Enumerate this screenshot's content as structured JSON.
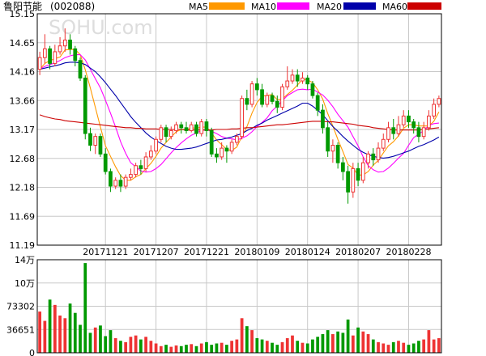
{
  "header": {
    "title": "鲁阳节能",
    "code": "(002088)",
    "watermark": "SOHU.com"
  },
  "legend": [
    {
      "label": "MA5",
      "color": "#FF9900"
    },
    {
      "label": "MA10",
      "color": "#FF00FF"
    },
    {
      "label": "MA20",
      "color": "#0000AA"
    },
    {
      "label": "MA60",
      "color": "#CC0000"
    }
  ],
  "colors": {
    "up": "#EE3333",
    "down": "#009900",
    "grid": "#C8C8C8",
    "border": "#000000"
  },
  "chart_data": [
    {
      "type": "candlestick",
      "title": "",
      "ylim": [
        11.19,
        15.15
      ],
      "yticks": [
        "15.15",
        "14.65",
        "14.16",
        "13.66",
        "13.17",
        "12.68",
        "12.18",
        "11.69",
        "11.19"
      ],
      "xticks": [
        {
          "index": 13,
          "label": "20171121"
        },
        {
          "index": 23,
          "label": "20171207"
        },
        {
          "index": 33,
          "label": "20171221"
        },
        {
          "index": 43,
          "label": "20180109"
        },
        {
          "index": 53,
          "label": "20180124"
        },
        {
          "index": 63,
          "label": "20180207"
        },
        {
          "index": 73,
          "label": "20180228"
        }
      ],
      "candles": [
        [
          14.2,
          14.4,
          14.5,
          14.1
        ],
        [
          14.4,
          14.55,
          14.8,
          14.3
        ],
        [
          14.55,
          14.3,
          14.6,
          14.2
        ],
        [
          14.3,
          14.5,
          14.62,
          14.25
        ],
        [
          14.5,
          14.6,
          14.75,
          14.45
        ],
        [
          14.6,
          14.7,
          14.9,
          14.5
        ],
        [
          14.7,
          14.55,
          14.8,
          14.45
        ],
        [
          14.55,
          14.35,
          14.6,
          14.25
        ],
        [
          14.35,
          14.05,
          14.4,
          14.0
        ],
        [
          14.05,
          13.1,
          14.1,
          13.0
        ],
        [
          13.1,
          12.9,
          13.2,
          12.8
        ],
        [
          12.9,
          13.05,
          13.1,
          12.75
        ],
        [
          13.05,
          12.75,
          13.1,
          12.7
        ],
        [
          12.75,
          12.45,
          12.85,
          12.4
        ],
        [
          12.45,
          12.2,
          12.5,
          12.1
        ],
        [
          12.2,
          12.3,
          12.35,
          12.15
        ],
        [
          12.3,
          12.2,
          12.4,
          12.1
        ],
        [
          12.2,
          12.35,
          12.4,
          12.15
        ],
        [
          12.35,
          12.4,
          12.5,
          12.3
        ],
        [
          12.4,
          12.55,
          12.6,
          12.35
        ],
        [
          12.55,
          12.5,
          12.65,
          12.4
        ],
        [
          12.5,
          12.7,
          12.78,
          12.45
        ],
        [
          12.7,
          12.8,
          12.9,
          12.65
        ],
        [
          12.8,
          13.0,
          13.05,
          12.75
        ],
        [
          13.0,
          13.2,
          13.25,
          12.95
        ],
        [
          13.2,
          13.05,
          13.25,
          12.95
        ],
        [
          13.05,
          13.15,
          13.22,
          13.0
        ],
        [
          13.15,
          13.25,
          13.3,
          13.1
        ],
        [
          13.25,
          13.2,
          13.3,
          13.1
        ],
        [
          13.2,
          13.15,
          13.3,
          13.1
        ],
        [
          13.15,
          13.25,
          13.3,
          13.12
        ],
        [
          13.25,
          13.1,
          13.3,
          13.05
        ],
        [
          13.1,
          13.3,
          13.35,
          13.05
        ],
        [
          13.3,
          13.15,
          13.35,
          13.05
        ],
        [
          13.15,
          12.75,
          13.2,
          12.7
        ],
        [
          12.75,
          12.7,
          12.85,
          12.6
        ],
        [
          12.7,
          12.85,
          12.95,
          12.65
        ],
        [
          12.85,
          12.8,
          12.9,
          12.6
        ],
        [
          12.8,
          12.95,
          13.0,
          12.75
        ],
        [
          12.95,
          13.05,
          13.1,
          12.9
        ],
        [
          13.05,
          13.7,
          13.75,
          13.0
        ],
        [
          13.7,
          13.6,
          13.85,
          13.5
        ],
        [
          13.6,
          13.95,
          14.0,
          13.55
        ],
        [
          13.95,
          13.85,
          14.05,
          13.75
        ],
        [
          13.85,
          13.6,
          13.95,
          13.55
        ],
        [
          13.6,
          13.75,
          13.8,
          13.55
        ],
        [
          13.75,
          13.65,
          13.8,
          13.6
        ],
        [
          13.65,
          13.55,
          13.75,
          13.45
        ],
        [
          13.55,
          13.9,
          13.95,
          13.5
        ],
        [
          13.9,
          14.0,
          14.25,
          13.85
        ],
        [
          14.0,
          14.1,
          14.2,
          13.95
        ],
        [
          14.1,
          14.0,
          14.2,
          13.9
        ],
        [
          14.0,
          14.05,
          14.15,
          13.95
        ],
        [
          14.05,
          13.95,
          14.1,
          13.85
        ],
        [
          13.95,
          13.75,
          14.0,
          13.7
        ],
        [
          13.75,
          13.5,
          13.8,
          13.4
        ],
        [
          13.5,
          13.2,
          13.6,
          13.1
        ],
        [
          13.2,
          12.8,
          13.3,
          12.7
        ],
        [
          12.8,
          12.9,
          13.0,
          12.6
        ],
        [
          12.9,
          12.6,
          12.95,
          12.5
        ],
        [
          12.6,
          12.45,
          12.7,
          12.3
        ],
        [
          12.45,
          12.1,
          12.55,
          11.9
        ],
        [
          12.1,
          12.5,
          12.6,
          12.0
        ],
        [
          12.5,
          12.3,
          12.6,
          12.2
        ],
        [
          12.3,
          12.6,
          12.7,
          12.25
        ],
        [
          12.6,
          12.75,
          12.8,
          12.5
        ],
        [
          12.75,
          12.65,
          12.85,
          12.55
        ],
        [
          12.65,
          12.85,
          12.95,
          12.6
        ],
        [
          12.85,
          13.0,
          13.1,
          12.8
        ],
        [
          13.0,
          13.2,
          13.3,
          12.95
        ],
        [
          13.2,
          13.1,
          13.35,
          13.0
        ],
        [
          13.1,
          13.25,
          13.4,
          13.05
        ],
        [
          13.25,
          13.4,
          13.5,
          13.2
        ],
        [
          13.4,
          13.3,
          13.5,
          13.2
        ],
        [
          13.3,
          13.2,
          13.35,
          13.1
        ],
        [
          13.2,
          13.05,
          13.3,
          12.95
        ],
        [
          13.05,
          13.2,
          13.3,
          13.0
        ],
        [
          13.2,
          13.4,
          13.5,
          13.15
        ],
        [
          13.4,
          13.6,
          13.7,
          13.35
        ],
        [
          13.6,
          13.7,
          13.75,
          13.55
        ]
      ],
      "series": [
        {
          "name": "MA5",
          "values": [
            14.2,
            14.3,
            14.35,
            14.38,
            14.41,
            14.53,
            14.54,
            14.54,
            14.45,
            14.19,
            13.88,
            13.55,
            13.21,
            12.89,
            12.71,
            12.53,
            12.38,
            12.3,
            12.3,
            12.36,
            12.4,
            12.5,
            12.59,
            12.71,
            12.85,
            12.95,
            13.04,
            13.13,
            13.17,
            13.16,
            13.2,
            13.19,
            13.21,
            13.21,
            13.11,
            12.99,
            12.91,
            12.83,
            12.81,
            12.87,
            13.05,
            13.22,
            13.45,
            13.63,
            13.74,
            13.75,
            13.77,
            13.68,
            13.69,
            13.77,
            13.84,
            13.93,
            14.03,
            14.02,
            13.97,
            13.85,
            13.69,
            13.44,
            13.23,
            13.0,
            12.79,
            12.57,
            12.51,
            12.39,
            12.39,
            12.45,
            12.56,
            12.64,
            12.77,
            12.89,
            12.96,
            13.06,
            13.19,
            13.25,
            13.25,
            13.23,
            13.23,
            13.23,
            13.31,
            13.47
          ]
        },
        {
          "name": "MA10",
          "values": [
            14.2,
            14.25,
            14.28,
            14.31,
            14.35,
            14.4,
            14.43,
            14.45,
            14.45,
            14.36,
            14.2,
            14.04,
            13.88,
            13.67,
            13.45,
            13.21,
            12.96,
            12.76,
            12.6,
            12.53,
            12.46,
            12.44,
            12.45,
            12.5,
            12.57,
            12.67,
            12.77,
            12.86,
            12.94,
            13.01,
            13.07,
            13.11,
            13.15,
            13.17,
            13.14,
            13.1,
            13.05,
            13.02,
            13.01,
            12.99,
            13.02,
            13.06,
            13.13,
            13.22,
            13.29,
            13.37,
            13.49,
            13.57,
            13.66,
            13.75,
            13.8,
            13.85,
            13.86,
            13.85,
            13.86,
            13.81,
            13.76,
            13.67,
            13.56,
            13.43,
            13.32,
            13.21,
            13.05,
            12.89,
            12.7,
            12.55,
            12.48,
            12.44,
            12.45,
            12.51,
            12.59,
            12.68,
            12.76,
            12.9,
            13.03,
            13.09,
            13.15,
            13.24,
            13.27,
            13.28
          ]
        },
        {
          "name": "MA20",
          "values": [
            14.2,
            14.22,
            14.24,
            14.26,
            14.28,
            14.31,
            14.32,
            14.32,
            14.31,
            14.28,
            14.22,
            14.16,
            14.07,
            13.97,
            13.86,
            13.75,
            13.63,
            13.51,
            13.39,
            13.29,
            13.2,
            13.11,
            13.04,
            12.98,
            12.93,
            12.88,
            12.85,
            12.83,
            12.83,
            12.84,
            12.85,
            12.87,
            12.9,
            12.93,
            12.96,
            12.99,
            13.0,
            13.02,
            13.04,
            13.07,
            13.1,
            13.15,
            13.19,
            13.24,
            13.28,
            13.33,
            13.37,
            13.41,
            13.45,
            13.49,
            13.53,
            13.57,
            13.62,
            13.62,
            13.57,
            13.5,
            13.42,
            13.32,
            13.22,
            13.14,
            13.05,
            12.97,
            12.9,
            12.83,
            12.78,
            12.74,
            12.71,
            12.69,
            12.68,
            12.69,
            12.71,
            12.74,
            12.77,
            12.8,
            12.84,
            12.88,
            12.91,
            12.95,
            12.99,
            13.04
          ]
        },
        {
          "name": "MA60",
          "values": [
            13.42,
            13.39,
            13.37,
            13.35,
            13.34,
            13.32,
            13.31,
            13.3,
            13.29,
            13.28,
            13.27,
            13.26,
            13.25,
            13.24,
            13.23,
            13.22,
            13.21,
            13.2,
            13.2,
            13.19,
            13.19,
            13.18,
            13.18,
            13.18,
            13.17,
            13.17,
            13.17,
            13.17,
            13.17,
            13.16,
            13.16,
            13.16,
            13.16,
            13.16,
            13.16,
            13.17,
            13.17,
            13.17,
            13.18,
            13.18,
            13.19,
            13.2,
            13.2,
            13.21,
            13.22,
            13.23,
            13.24,
            13.25,
            13.25,
            13.26,
            13.27,
            13.28,
            13.29,
            13.3,
            13.31,
            13.31,
            13.31,
            13.3,
            13.3,
            13.29,
            13.28,
            13.27,
            13.26,
            13.24,
            13.23,
            13.22,
            13.2,
            13.19,
            13.18,
            13.17,
            13.16,
            13.16,
            13.16,
            13.16,
            13.16,
            13.16,
            13.17,
            13.18,
            13.19,
            13.2
          ]
        }
      ]
    },
    {
      "type": "bar",
      "title": "",
      "ylim": [
        0,
        140000
      ],
      "yticks": [
        "14万",
        "10万",
        "73302",
        "36651",
        "0"
      ],
      "volumes": [
        62000,
        48000,
        80000,
        72000,
        56000,
        52000,
        74000,
        60000,
        42000,
        135000,
        30000,
        38000,
        41000,
        25000,
        34000,
        22000,
        18000,
        16000,
        24000,
        26000,
        20000,
        24000,
        18000,
        14000,
        10000,
        12000,
        9000,
        11000,
        10000,
        12000,
        13000,
        10000,
        14000,
        16000,
        12000,
        14000,
        15000,
        12000,
        18000,
        20000,
        52000,
        40000,
        34000,
        22000,
        20000,
        18000,
        15000,
        12000,
        16000,
        22000,
        26000,
        18000,
        15000,
        14000,
        20000,
        24000,
        28000,
        34000,
        28000,
        32000,
        30000,
        50000,
        26000,
        38000,
        32000,
        28000,
        20000,
        16000,
        14000,
        12000,
        16000,
        18000,
        15000,
        12000,
        14000,
        18000,
        20000,
        34000,
        20000,
        22000
      ]
    }
  ]
}
